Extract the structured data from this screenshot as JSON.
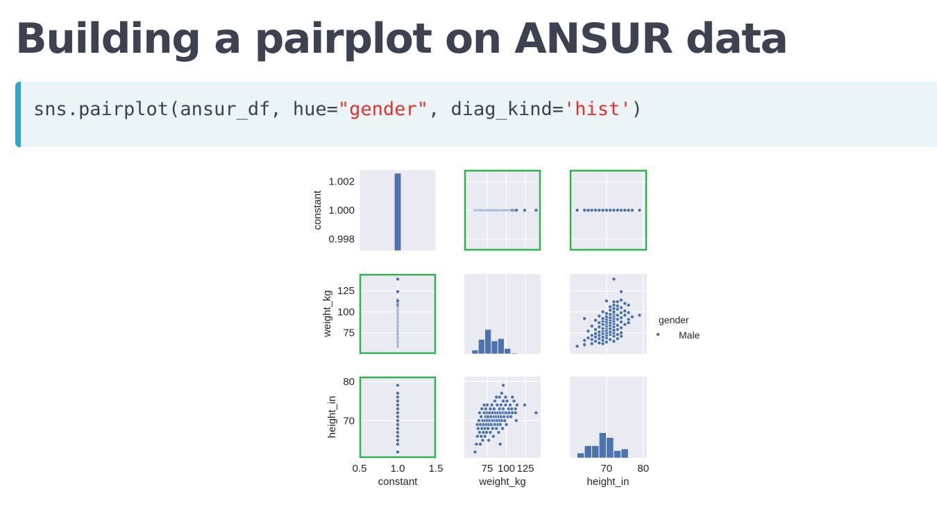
{
  "slide": {
    "title": "Building a pairplot on ANSUR data"
  },
  "code": {
    "parts": [
      "sns.pairplot(ansur_df, hue=",
      "\"gender\"",
      ", diag_kind=",
      "'hist'",
      ")"
    ]
  },
  "chart_data": {
    "type": "scatter",
    "subtype": "pairplot",
    "variables": [
      "constant",
      "weight_kg",
      "height_in"
    ],
    "hue": "gender",
    "legend": {
      "title": "gender",
      "entries": [
        {
          "label": "Male",
          "color": "#4c72b0"
        }
      ],
      "placement": "right"
    },
    "highlight_color": "#2eb24f",
    "highlighted_cells": [
      [
        0,
        1
      ],
      [
        0,
        2
      ],
      [
        1,
        0
      ],
      [
        2,
        0
      ]
    ],
    "axes": {
      "constant": {
        "range": [
          0.5,
          1.5
        ],
        "ticks": [
          0.5,
          1.0,
          1.5
        ],
        "tick_labels": [
          "0.5",
          "1.0",
          "1.5"
        ],
        "y_range": [
          0.9972,
          1.0028
        ],
        "y_ticks": [
          0.998,
          1.0,
          1.002
        ],
        "y_tick_labels": [
          "0.998",
          "1.000",
          "1.002"
        ]
      },
      "weight_kg": {
        "range": [
          45,
          145
        ],
        "ticks": [
          75,
          100,
          125
        ],
        "tick_labels": [
          "75",
          "100",
          "125"
        ],
        "x_tick_labels": [
          "75",
          "100",
          "125"
        ]
      },
      "height_in": {
        "range": [
          60,
          81
        ],
        "ticks": [
          70,
          80
        ],
        "tick_labels": [
          "70",
          "80"
        ],
        "y_ticks": [
          70,
          80
        ],
        "y_tick_labels": [
          "70",
          "80"
        ]
      }
    },
    "histograms": {
      "constant": {
        "bins": [
          [
            0.96,
            1.04,
            1
          ]
        ]
      },
      "weight_kg": {
        "bins": [
          [
            55,
            63.5,
            5
          ],
          [
            63.5,
            72,
            19
          ],
          [
            72,
            80.5,
            32
          ],
          [
            80.5,
            89,
            17
          ],
          [
            89,
            97.5,
            20
          ],
          [
            97.5,
            106,
            7
          ],
          [
            106,
            114.5,
            1
          ],
          [
            122,
            130,
            0.6
          ],
          [
            131,
            140,
            0.6
          ]
        ],
        "ymax": 105
      },
      "height_in": {
        "bins": [
          [
            62,
            64,
            6
          ],
          [
            64,
            66,
            15
          ],
          [
            66,
            68,
            15
          ],
          [
            68,
            70,
            31
          ],
          [
            70,
            72,
            25
          ],
          [
            72,
            74,
            9
          ],
          [
            74,
            76,
            11
          ]
        ],
        "ymax": 100
      }
    },
    "points": [
      [
        59,
        62
      ],
      [
        60,
        64
      ],
      [
        61,
        64
      ],
      [
        62,
        66
      ],
      [
        62,
        69
      ],
      [
        63,
        68
      ],
      [
        64,
        70
      ],
      [
        65,
        67
      ],
      [
        65,
        72
      ],
      [
        66,
        69
      ],
      [
        66,
        64
      ],
      [
        67,
        71
      ],
      [
        67,
        66
      ],
      [
        68,
        68
      ],
      [
        68,
        73
      ],
      [
        69,
        70
      ],
      [
        69,
        65
      ],
      [
        70,
        67
      ],
      [
        70,
        69
      ],
      [
        71,
        72
      ],
      [
        71,
        74
      ],
      [
        72,
        68
      ],
      [
        72,
        70
      ],
      [
        72,
        66
      ],
      [
        73,
        71
      ],
      [
        73,
        73
      ],
      [
        74,
        69
      ],
      [
        74,
        67
      ],
      [
        75,
        70
      ],
      [
        75,
        72
      ],
      [
        75,
        74
      ],
      [
        76,
        68
      ],
      [
        76,
        71
      ],
      [
        77,
        65
      ],
      [
        77,
        69
      ],
      [
        78,
        70
      ],
      [
        78,
        72
      ],
      [
        79,
        67
      ],
      [
        79,
        73
      ],
      [
        80,
        71
      ],
      [
        80,
        69
      ],
      [
        81,
        70
      ],
      [
        81,
        74
      ],
      [
        82,
        68
      ],
      [
        82,
        72
      ],
      [
        83,
        66
      ],
      [
        83,
        70
      ],
      [
        84,
        71
      ],
      [
        84,
        73
      ],
      [
        85,
        69
      ],
      [
        85,
        75
      ],
      [
        86,
        70
      ],
      [
        86,
        72
      ],
      [
        87,
        68
      ],
      [
        87,
        71
      ],
      [
        88,
        70
      ],
      [
        88,
        74
      ],
      [
        89,
        69
      ],
      [
        89,
        72
      ],
      [
        90,
        71
      ],
      [
        90,
        67
      ],
      [
        91,
        70
      ],
      [
        91,
        73
      ],
      [
        92,
        72
      ],
      [
        92,
        69
      ],
      [
        93,
        74
      ],
      [
        93,
        71
      ],
      [
        94,
        70
      ],
      [
        95,
        72
      ],
      [
        95,
        68
      ],
      [
        96,
        73
      ],
      [
        96,
        75
      ],
      [
        97,
        71
      ],
      [
        98,
        70
      ],
      [
        98,
        72
      ],
      [
        99,
        74
      ],
      [
        100,
        72
      ],
      [
        100,
        69
      ],
      [
        101,
        75
      ],
      [
        102,
        71
      ],
      [
        103,
        73
      ],
      [
        104,
        72
      ],
      [
        105,
        74
      ],
      [
        106,
        71
      ],
      [
        107,
        73
      ],
      [
        108,
        72
      ],
      [
        110,
        75
      ],
      [
        112,
        73
      ],
      [
        114,
        74
      ],
      [
        99,
        76
      ],
      [
        94,
        77
      ],
      [
        96,
        79
      ],
      [
        92,
        64
      ],
      [
        108,
        76
      ],
      [
        112,
        72
      ],
      [
        113,
        70
      ],
      [
        124,
        74
      ],
      [
        139,
        72
      ],
      [
        91,
        76
      ],
      [
        87,
        76
      ]
    ]
  }
}
